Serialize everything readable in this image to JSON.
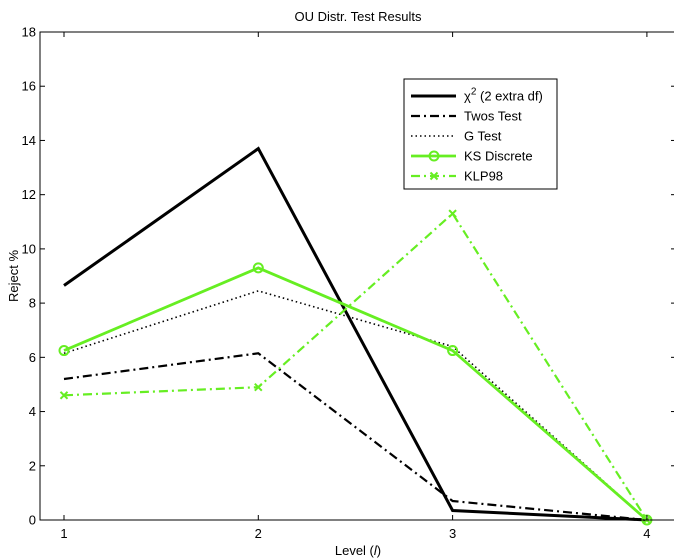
{
  "chart_data": {
    "type": "line",
    "title": "OU Distr. Test Results",
    "xlabel_prefix": "Level (",
    "xlabel_var": "l",
    "xlabel_suffix": ")",
    "ylabel": "Reject %",
    "x": [
      1,
      2,
      3,
      4
    ],
    "xlim": [
      1,
      4
    ],
    "ylim": [
      0,
      18
    ],
    "xticks": [
      1,
      2,
      3,
      4
    ],
    "yticks": [
      0,
      2,
      4,
      6,
      8,
      10,
      12,
      14,
      16,
      18
    ],
    "grid": false,
    "legend_position": "top-right",
    "series": [
      {
        "name": "χ²  (2 extra df)",
        "label_base": "χ",
        "label_sup": "2",
        "label_rest": " (2 extra df)",
        "values": [
          8.65,
          13.7,
          0.35,
          0.0
        ],
        "color": "#000000",
        "dash": "",
        "width": 3,
        "marker": "none"
      },
      {
        "name": "Twos Test",
        "values": [
          5.2,
          6.15,
          0.7,
          0.0
        ],
        "color": "#000000",
        "dash": "9,4,2,4",
        "width": 2.2,
        "marker": "none"
      },
      {
        "name": "G Test",
        "values": [
          6.15,
          8.45,
          6.4,
          0.0
        ],
        "color": "#000000",
        "dash": "1.5,3",
        "width": 1.6,
        "marker": "none"
      },
      {
        "name": "KS Discrete",
        "values": [
          6.25,
          9.3,
          6.25,
          0.0
        ],
        "color": "#66ee22",
        "dash": "",
        "width": 2.8,
        "marker": "circle"
      },
      {
        "name": "KLP98",
        "values": [
          4.6,
          4.9,
          11.3,
          0.0
        ],
        "color": "#66ee22",
        "dash": "9,4,2,4",
        "width": 2.2,
        "marker": "x"
      }
    ]
  }
}
